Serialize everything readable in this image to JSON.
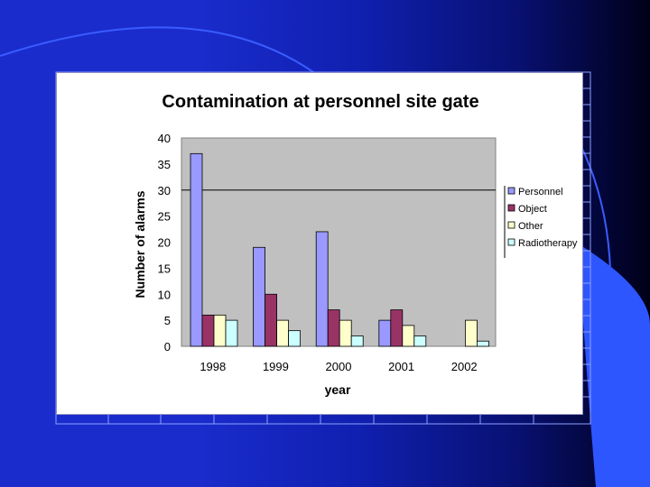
{
  "colors": {
    "plot_bg": "#c0c0c0",
    "reference_line": "#000000"
  },
  "chart_data": {
    "type": "bar",
    "title": "Contamination at personnel site gate",
    "xlabel": "year",
    "ylabel": "Number of alarms",
    "categories": [
      "1998",
      "1999",
      "2000",
      "2001",
      "2002"
    ],
    "ylim": [
      0,
      40
    ],
    "yticks": [
      "0",
      "5",
      "10",
      "15",
      "20",
      "25",
      "30",
      "35",
      "40"
    ],
    "grid": false,
    "reference_line_y": 30,
    "legend_position": "right",
    "series": [
      {
        "name": "Personnel",
        "color": "#9999ff",
        "values": [
          37,
          19,
          22,
          5,
          0
        ]
      },
      {
        "name": "Object",
        "color": "#993366",
        "values": [
          6,
          10,
          7,
          7,
          0
        ]
      },
      {
        "name": "Other",
        "color": "#ffffcc",
        "values": [
          6,
          5,
          5,
          4,
          5
        ]
      },
      {
        "name": "Radiotherapy",
        "color": "#ccffff",
        "values": [
          5,
          3,
          2,
          2,
          1
        ]
      }
    ]
  }
}
